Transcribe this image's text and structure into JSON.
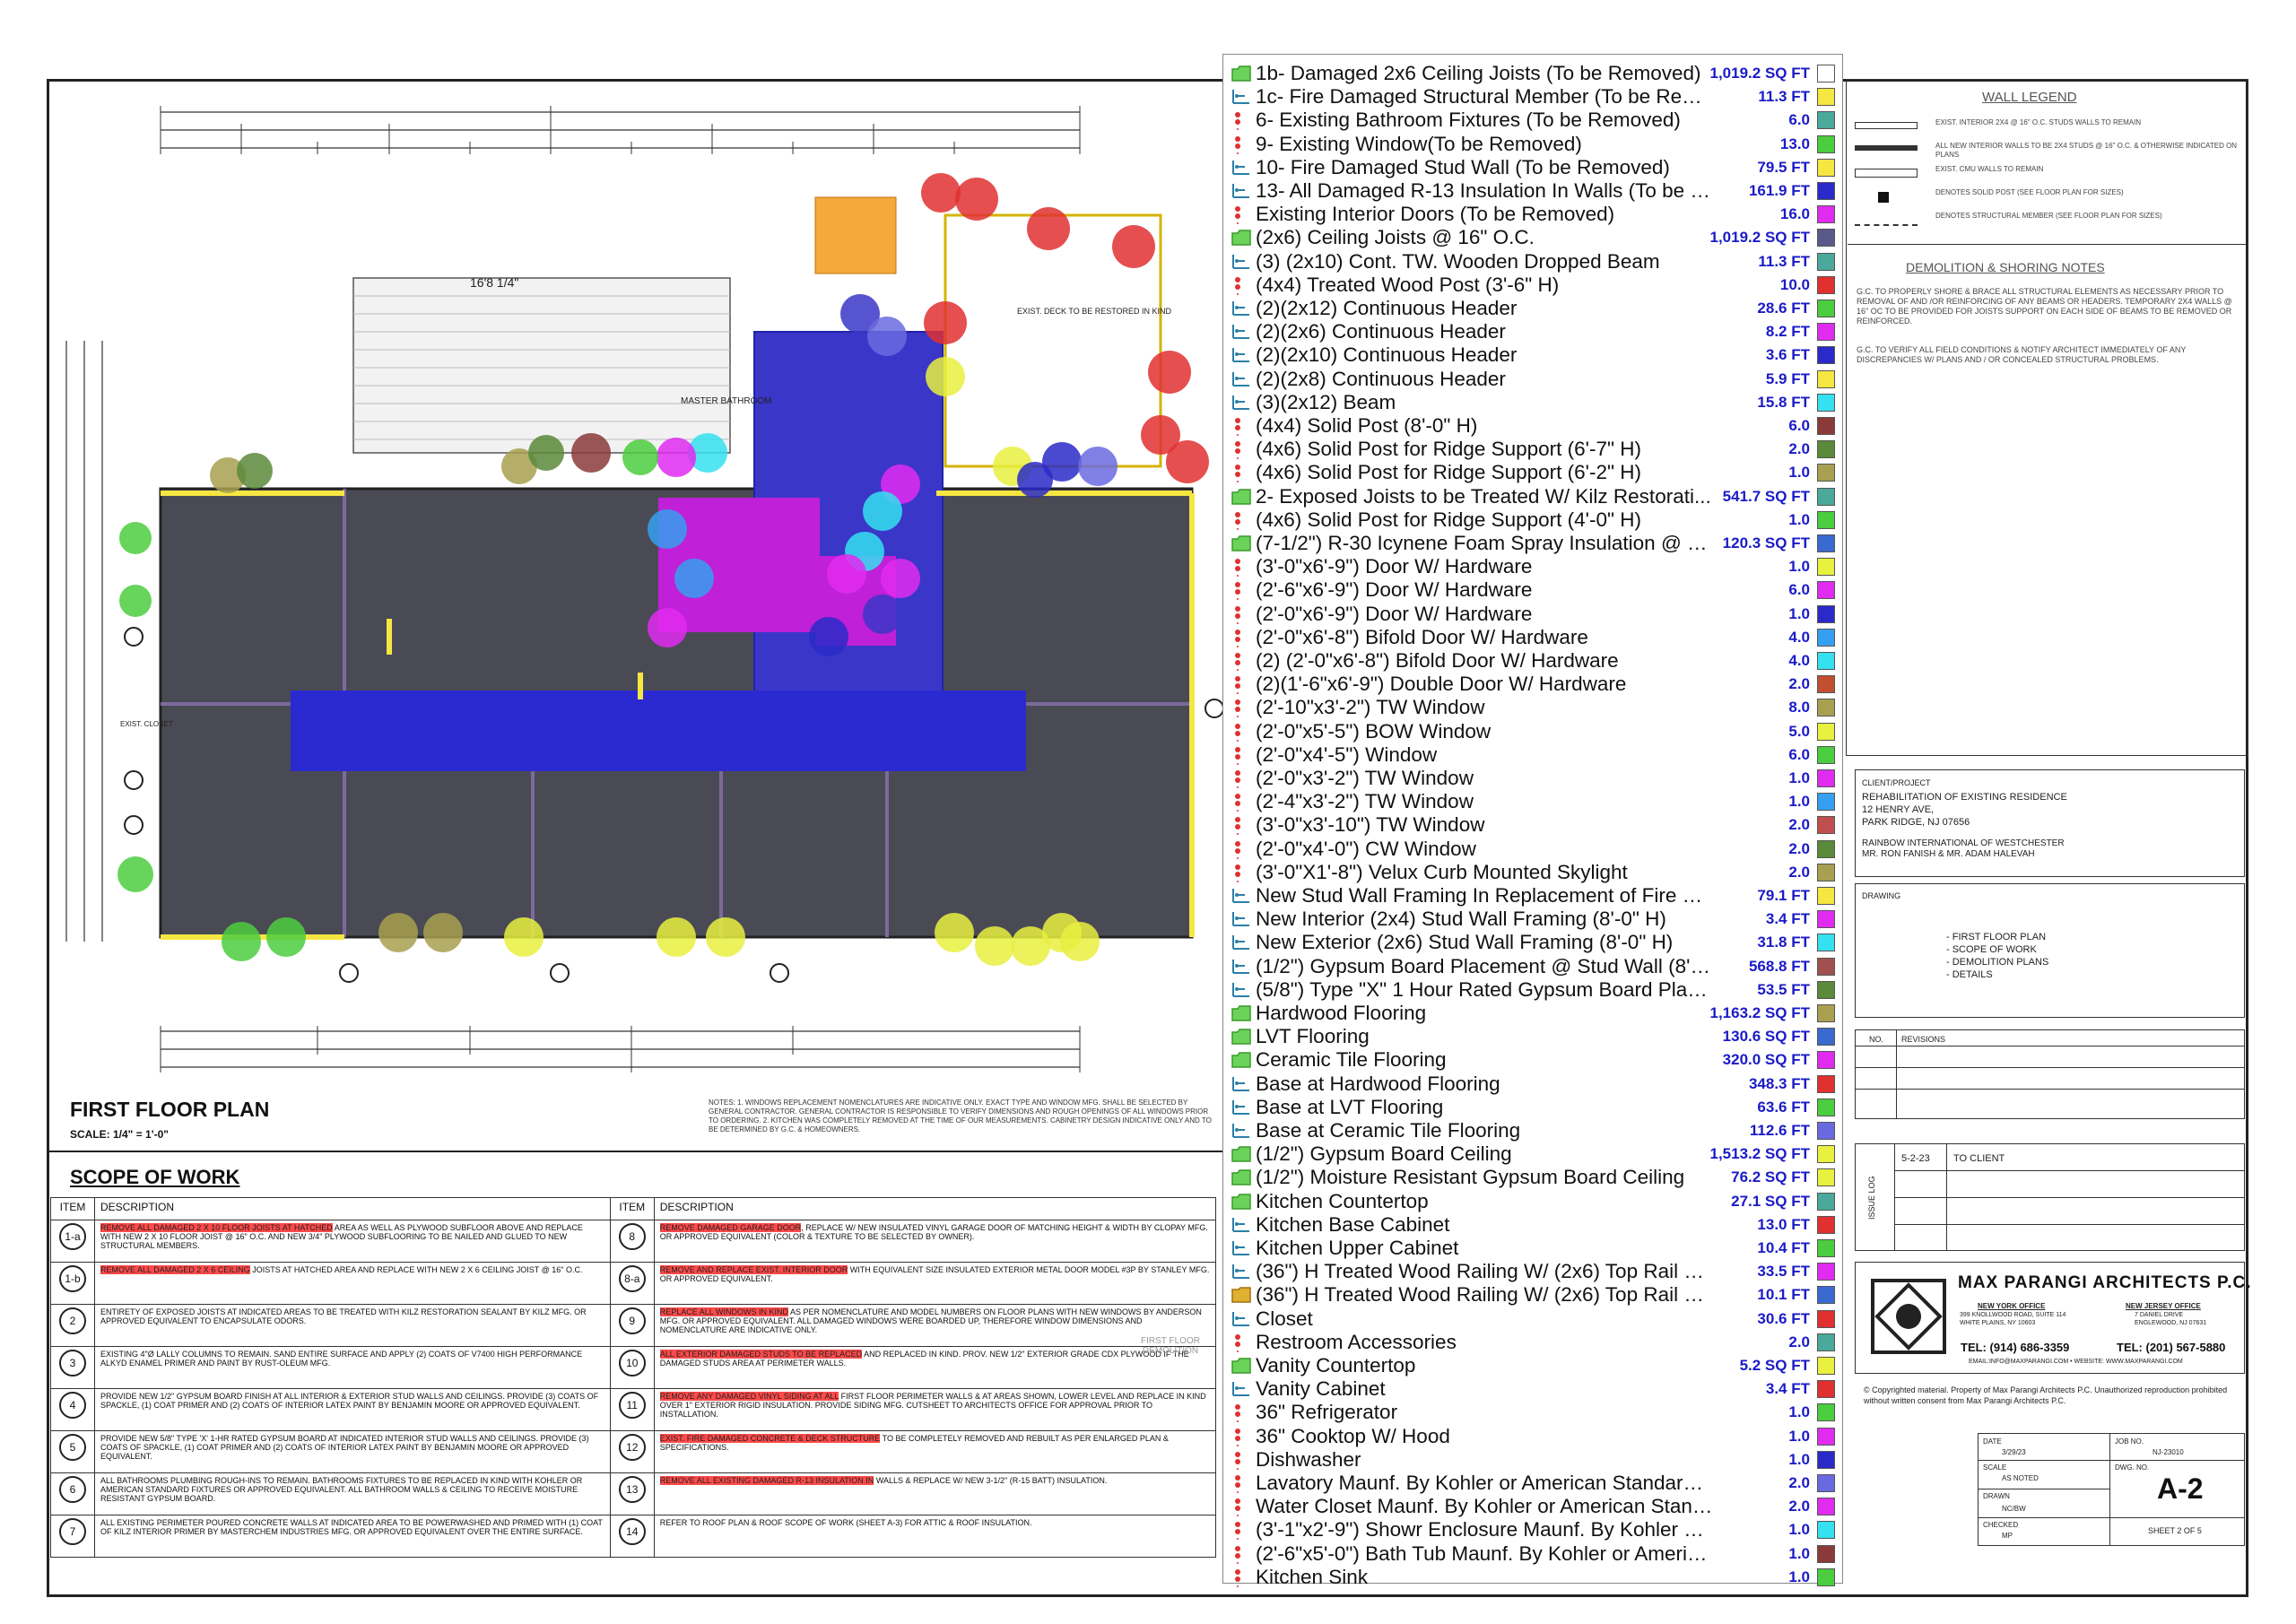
{
  "plan": {
    "dimension_label": "16'8 1/4\"",
    "title": "FIRST FLOOR PLAN",
    "scale": "SCALE: 1/4\" = 1'-0\"",
    "notes": "NOTES: 1. WINDOWS REPLACEMENT NOMENCLATURES ARE INDICATIVE ONLY. EXACT TYPE AND WINDOW MFG. SHALL BE SELECTED BY GENERAL CONTRACTOR. GENERAL CONTRACTOR IS RESPONSIBLE TO VERIFY DIMENSIONS AND ROUGH OPENINGS OF ALL WINDOWS PRIOR TO ORDERING. 2. KITCHEN WAS COMPLETELY REMOVED AT THE TIME OF OUR MEASUREMENTS. CABINETRY DESIGN INDICATIVE ONLY AND TO BE DETERMINED BY G.C. & HOMEOWNERS.",
    "room_labels": [
      "MASTER BATHROOM",
      "EXIST. DECK TO BE RESTORED IN KIND",
      "EXIST. CLOSET"
    ]
  },
  "scope": {
    "title": "SCOPE OF WORK",
    "col_item": "ITEM",
    "col_desc": "DESCRIPTION",
    "left": [
      {
        "item": "1-a",
        "hl": "REMOVE ALL DAMAGED 2 X 10 FLOOR JOISTS AT HATCHED",
        "rest": " AREA AS WELL AS PLYWOOD SUBFLOOR ABOVE AND REPLACE WITH NEW 2 X 10 FLOOR JOIST @ 16\" O.C. AND NEW 3/4\" PLYWOOD SUBFLOORING TO BE NAILED AND GLUED TO NEW STRUCTURAL MEMBERS."
      },
      {
        "item": "1-b",
        "hl": "REMOVE ALL DAMAGED 2 X 6 CEILING",
        "rest": " JOISTS AT HATCHED AREA AND REPLACE WITH NEW 2 X 6 CEILING JOIST @ 16\" O.C."
      },
      {
        "item": "2",
        "hl": "",
        "rest": "ENTIRETY OF EXPOSED JOISTS AT INDICATED AREAS TO BE TREATED WITH KILZ RESTORATION SEALANT BY KILZ MFG. OR APPROVED EQUIVALENT TO ENCAPSULATE ODORS."
      },
      {
        "item": "3",
        "hl": "",
        "rest": "EXISTING 4\"Ø LALLY COLUMNS TO REMAIN. SAND ENTIRE SURFACE AND APPLY (2) COATS OF V7400 HIGH PERFORMANCE ALKYD ENAMEL PRIMER AND PAINT BY RUST-OLEUM MFG."
      },
      {
        "item": "4",
        "hl": "",
        "rest": "PROVIDE NEW 1/2\" GYPSUM BOARD FINISH AT ALL INTERIOR & EXTERIOR STUD WALLS AND CEILINGS. PROVIDE (3) COATS OF SPACKLE, (1) COAT PRIMER AND (2) COATS OF INTERIOR LATEX PAINT BY BENJAMIN MOORE OR APPROVED EQUIVALENT."
      },
      {
        "item": "5",
        "hl": "",
        "rest": "PROVIDE NEW 5/8\" TYPE 'X' 1-HR RATED GYPSUM BOARD AT INDICATED INTERIOR STUD WALLS AND CEILINGS. PROVIDE (3) COATS OF SPACKLE, (1) COAT PRIMER AND (2) COATS OF INTERIOR LATEX PAINT BY BENJAMIN MOORE OR APPROVED EQUIVALENT."
      },
      {
        "item": "6",
        "hl": "",
        "rest": "ALL BATHROOMS PLUMBING ROUGH-INS TO REMAIN. BATHROOMS FIXTURES TO BE REPLACED IN KIND WITH KOHLER OR AMERICAN STANDARD FIXTURES OR APPROVED EQUIVALENT. ALL BATHROOM WALLS & CEILING TO RECEIVE MOISTURE RESISTANT GYPSUM BOARD."
      },
      {
        "item": "7",
        "hl": "",
        "rest": "ALL EXISTING PERIMETER POURED CONCRETE WALLS AT INDICATED AREA TO BE POWERWASHED AND PRIMED WITH (1) COAT OF KILZ INTERIOR PRIMER BY MASTERCHEM INDUSTRIES MFG. OR APPROVED EQUIVALENT OVER THE ENTIRE SURFACE."
      }
    ],
    "right": [
      {
        "item": "8",
        "hl": "REMOVE DAMAGED GARAGE DOOR",
        "rest": ", REPLACE W/ NEW INSULATED VINYL GARAGE DOOR OF MATCHING HEIGHT & WIDTH BY CLOPAY MFG. OR APPROVED EQUIVALENT (COLOR & TEXTURE TO BE SELECTED BY OWNER)."
      },
      {
        "item": "8-a",
        "hl": "REMOVE AND REPLACE EXIST. INTERIOR DOOR",
        "rest": " WITH EQUIVALENT SIZE INSULATED EXTERIOR METAL DOOR MODEL #3P BY STANLEY MFG. OR APPROVED EQUIVALENT."
      },
      {
        "item": "9",
        "hl": "REPLACE ALL WINDOWS IN KIND",
        "rest": " AS PER NOMENCLATURE AND MODEL NUMBERS ON FLOOR PLANS WITH NEW WINDOWS BY ANDERSON MFG. OR APPROVED EQUIVALENT. ALL DAMAGED WINDOWS WERE BOARDED UP, THEREFORE WINDOW DIMENSIONS AND NOMENCLATURE ARE INDICATIVE ONLY."
      },
      {
        "item": "10",
        "hl": "ALL EXTERIOR DAMAGED STUDS TO BE REPLACED",
        "rest": " AND REPLACED IN KIND. PROV. NEW 1/2\" EXTERIOR GRADE CDX PLYWOOD IF THE DAMAGED STUDS AREA AT PERIMETER WALLS."
      },
      {
        "item": "11",
        "hl": "REMOVE ANY DAMAGED VINYL SIDING AT ALL",
        "rest": " FIRST FLOOR PERIMETER WALLS & AT AREAS SHOWN, LOWER LEVEL AND REPLACE IN KIND OVER 1\" EXTERIOR RIGID INSULATION. PROVIDE SIDING MFG. CUTSHEET TO ARCHITECTS OFFICE FOR APPROVAL PRIOR TO INSTALLATION."
      },
      {
        "item": "12",
        "hl": "EXIST. FIRE DAMAGED CONCRETE & DECK STRUCTURE",
        "rest": " TO BE COMPLETELY REMOVED AND REBUILT AS PER ENLARGED PLAN & SPECIFICATIONS."
      },
      {
        "item": "13",
        "hl": "REMOVE ALL EXISTING DAMAGED R-13 INSULATION IN",
        "rest": " WALLS & REPLACE W/ NEW 3-1/2\" (R-15 BATT) INSULATION."
      },
      {
        "item": "14",
        "hl": "",
        "rest": "REFER TO ROOF PLAN & ROOF SCOPE OF WORK (SHEET A-3) FOR ATTIC & ROOF INSULATION."
      }
    ]
  },
  "legend": [
    {
      "icon": "area",
      "label": "1b- Damaged 2x6 Ceiling Joists (To be Removed)",
      "qty": "1,019.2 SQ FT",
      "color": "#ffffff"
    },
    {
      "icon": "line",
      "label": "1c- Fire Damaged Structural Member (To be Removed)",
      "qty": "11.3 FT",
      "color": "#f5e642"
    },
    {
      "icon": "count",
      "label": "6- Existing Bathroom Fixtures (To be Removed)",
      "qty": "6.0",
      "color": "#4aa99a"
    },
    {
      "icon": "count",
      "label": "9- Existing Window(To be Removed)",
      "qty": "13.0",
      "color": "#4ccc3f"
    },
    {
      "icon": "line",
      "label": "10- Fire Damaged Stud Wall (To be Removed)",
      "qty": "79.5 FT",
      "color": "#f5e642"
    },
    {
      "icon": "line",
      "label": "13- All Damaged R-13 Insulation In Walls (To be Re...",
      "qty": "161.9 FT",
      "color": "#2a2ac8"
    },
    {
      "icon": "count",
      "label": "Existing Interior Doors (To be Removed)",
      "qty": "16.0",
      "color": "#e02cf0"
    },
    {
      "icon": "area",
      "label": "(2x6) Ceiling Joists @ 16\" O.C.",
      "qty": "1,019.2 SQ FT",
      "color": "#5a5a8a"
    },
    {
      "icon": "line",
      "label": "(3) (2x10) Cont. TW. Wooden Dropped Beam",
      "qty": "11.3 FT",
      "color": "#4aa99a"
    },
    {
      "icon": "count",
      "label": "(4x4) Treated Wood Post (3'-6\" H)",
      "qty": "10.0",
      "color": "#e03030"
    },
    {
      "icon": "line",
      "label": "(2)(2x12) Continuous Header",
      "qty": "28.6 FT",
      "color": "#4ccc3f"
    },
    {
      "icon": "line",
      "label": "(2)(2x6) Continuous Header",
      "qty": "8.2 FT",
      "color": "#e02cf0"
    },
    {
      "icon": "line",
      "label": "(2)(2x10) Continuous Header",
      "qty": "3.6 FT",
      "color": "#2a2ac8"
    },
    {
      "icon": "line",
      "label": "(2)(2x8) Continuous Header",
      "qty": "5.9 FT",
      "color": "#f5e642"
    },
    {
      "icon": "line",
      "label": "(3)(2x12) Beam",
      "qty": "15.8 FT",
      "color": "#35e0f0"
    },
    {
      "icon": "count",
      "label": "(4x4) Solid Post (8'-0\" H)",
      "qty": "6.0",
      "color": "#8b3a3a"
    },
    {
      "icon": "count",
      "label": "(4x6) Solid Post for Ridge Support (6'-7\" H)",
      "qty": "2.0",
      "color": "#5a8a3a"
    },
    {
      "icon": "count",
      "label": "(4x6) Solid Post for Ridge Support (6'-2\" H)",
      "qty": "1.0",
      "color": "#a8a050"
    },
    {
      "icon": "area",
      "label": "2- Exposed Joists to be Treated W/ Kilz Restorati...",
      "qty": "541.7 SQ FT",
      "color": "#4aa99a"
    },
    {
      "icon": "count",
      "label": "(4x6) Solid Post for Ridge Support (4'-0\" H)",
      "qty": "1.0",
      "color": "#4ccc3f"
    },
    {
      "icon": "area",
      "label": "(7-1/2\") R-30 Icynene Foam Spray Insulation @ Fl...",
      "qty": "120.3 SQ FT",
      "color": "#3a6ad0"
    },
    {
      "icon": "count",
      "label": "(3'-0\"x6'-9\") Door W/ Hardware",
      "qty": "1.0",
      "color": "#e8f040"
    },
    {
      "icon": "count",
      "label": "(2'-6\"x6'-9\") Door W/ Hardware",
      "qty": "6.0",
      "color": "#e02cf0"
    },
    {
      "icon": "count",
      "label": "(2'-0\"x6'-9\") Door W/ Hardware",
      "qty": "1.0",
      "color": "#2a2ac8"
    },
    {
      "icon": "count",
      "label": "(2'-0\"x6'-8\") Bifold Door W/ Hardware",
      "qty": "4.0",
      "color": "#35a0f0"
    },
    {
      "icon": "count",
      "label": "(2) (2'-0\"x6'-8\") Bifold Door W/ Hardware",
      "qty": "4.0",
      "color": "#35e0f0"
    },
    {
      "icon": "count",
      "label": "(2)(1'-6\"x6'-9\") Double Door W/ Hardware",
      "qty": "2.0",
      "color": "#c05030"
    },
    {
      "icon": "count",
      "label": "(2'-10\"x3'-2\") TW Window",
      "qty": "8.0",
      "color": "#a8a050"
    },
    {
      "icon": "count",
      "label": "(2'-0\"x5'-5\") BOW Window",
      "qty": "5.0",
      "color": "#e8f040"
    },
    {
      "icon": "count",
      "label": "(2'-0\"x4'-5\") Window",
      "qty": "6.0",
      "color": "#4ccc3f"
    },
    {
      "icon": "count",
      "label": "(2'-0\"x3'-2\") TW Window",
      "qty": "1.0",
      "color": "#e02cf0"
    },
    {
      "icon": "count",
      "label": "(2'-4\"x3'-2\") TW Window",
      "qty": "1.0",
      "color": "#35a0f0"
    },
    {
      "icon": "count",
      "label": "(3'-0\"x3'-10\") TW Window",
      "qty": "2.0",
      "color": "#c05050"
    },
    {
      "icon": "count",
      "label": "(2'-0\"x4'-0\") CW Window",
      "qty": "2.0",
      "color": "#5a8a3a"
    },
    {
      "icon": "count",
      "label": "(3'-0\"X1'-8\") Velux Curb Mounted Skylight",
      "qty": "2.0",
      "color": "#a8a050"
    },
    {
      "icon": "line",
      "label": "New Stud Wall Framing In Replacement of Fire Dama...",
      "qty": "79.1 FT",
      "color": "#f5e642"
    },
    {
      "icon": "line",
      "label": "New Interior (2x4) Stud Wall Framing (8'-0\" H)",
      "qty": "3.4 FT",
      "color": "#e02cf0"
    },
    {
      "icon": "line",
      "label": "New Exterior (2x6) Stud Wall Framing (8'-0\" H)",
      "qty": "31.8 FT",
      "color": "#35e0f0"
    },
    {
      "icon": "line",
      "label": "(1/2\") Gypsum Board Placement @ Stud Wall (8'-0\" ...",
      "qty": "568.8 FT",
      "color": "#a05050"
    },
    {
      "icon": "line",
      "label": "(5/8\") Type \"X\" 1 Hour Rated Gypsum Board Placeme...",
      "qty": "53.5 FT",
      "color": "#5a8a3a"
    },
    {
      "icon": "area",
      "label": "Hardwood Flooring",
      "qty": "1,163.2 SQ FT",
      "color": "#a8a050"
    },
    {
      "icon": "area",
      "label": "LVT Flooring",
      "qty": "130.6 SQ FT",
      "color": "#3a6ad0"
    },
    {
      "icon": "area",
      "label": "Ceramic Tile Flooring",
      "qty": "320.0 SQ FT",
      "color": "#e02cf0"
    },
    {
      "icon": "line",
      "label": "Base at Hardwood Flooring",
      "qty": "348.3 FT",
      "color": "#e03030"
    },
    {
      "icon": "line",
      "label": "Base at LVT Flooring",
      "qty": "63.6 FT",
      "color": "#4ccc3f"
    },
    {
      "icon": "line",
      "label": "Base at Ceramic Tile Flooring",
      "qty": "112.6 FT",
      "color": "#6a6ae0"
    },
    {
      "icon": "area",
      "label": "(1/2\") Gypsum Board Ceiling",
      "qty": "1,513.2 SQ FT",
      "color": "#e8f040"
    },
    {
      "icon": "area",
      "label": "(1/2\") Moisture Resistant Gypsum Board Ceiling",
      "qty": "76.2 SQ FT",
      "color": "#e8f040"
    },
    {
      "icon": "area",
      "label": "Kitchen Countertop",
      "qty": "27.1 SQ FT",
      "color": "#4aa99a"
    },
    {
      "icon": "line",
      "label": "Kitchen Base Cabinet",
      "qty": "13.0 FT",
      "color": "#e03030"
    },
    {
      "icon": "line",
      "label": "Kitchen Upper Cabinet",
      "qty": "10.4 FT",
      "color": "#4ccc3f"
    },
    {
      "icon": "line",
      "label": "(36\") H Treated Wood Railing W/ (2x6) Top Rail & Bal...",
      "qty": "33.5 FT",
      "color": "#e02cf0"
    },
    {
      "icon": "folder",
      "label": "(36\") H Treated Wood Railing W/ (2x6) Top Rail & Bal...",
      "qty": "10.1 FT",
      "color": "#3a6ad0"
    },
    {
      "icon": "line",
      "label": "Closet",
      "qty": "30.6 FT",
      "color": "#e03030"
    },
    {
      "icon": "count",
      "label": "Restroom Accessories",
      "qty": "2.0",
      "color": "#4aa99a"
    },
    {
      "icon": "area",
      "label": "Vanity Countertop",
      "qty": "5.2 SQ FT",
      "color": "#e8f040"
    },
    {
      "icon": "line",
      "label": "Vanity Cabinet",
      "qty": "3.4 FT",
      "color": "#e03030"
    },
    {
      "icon": "count",
      "label": "36\" Refrigerator",
      "qty": "1.0",
      "color": "#4ccc3f"
    },
    {
      "icon": "count",
      "label": "36\" Cooktop W/ Hood",
      "qty": "1.0",
      "color": "#e02cf0"
    },
    {
      "icon": "count",
      "label": "Dishwasher",
      "qty": "1.0",
      "color": "#2a2ac8"
    },
    {
      "icon": "count",
      "label": "Lavatory Maunf. By Kohler or American Standard Fixture...",
      "qty": "2.0",
      "color": "#6a6ae0"
    },
    {
      "icon": "count",
      "label": "Water Closet Maunf. By Kohler or American Standard Fi...",
      "qty": "2.0",
      "color": "#e02cf0"
    },
    {
      "icon": "count",
      "label": "(3'-1\"x2'-9\") Showr Enclosure Maunf. By Kohler or Ameri...",
      "qty": "1.0",
      "color": "#35e0f0"
    },
    {
      "icon": "count",
      "label": "(2'-6\"x5'-0\") Bath Tub Maunf. By Kohler or American Sta...",
      "qty": "1.0",
      "color": "#8b3a3a"
    },
    {
      "icon": "count",
      "label": "Kitchen Sink",
      "qty": "1.0",
      "color": "#4ccc3f"
    }
  ],
  "wall_legend": {
    "title": "WALL LEGEND",
    "items": [
      "EXIST. INTERIOR 2X4 @ 16\" O.C. STUDS WALLS TO REMAIN",
      "ALL NEW INTERIOR WALLS TO BE 2X4 STUDS @ 16\" O.C. & OTHERWISE INDICATED ON PLANS",
      "EXIST. CMU WALLS TO REMAIN",
      "DENOTES SOLID POST (SEE FLOOR PLAN FOR SIZES)",
      "DENOTES STRUCTURAL MEMBER (SEE FLOOR PLAN FOR SIZES)"
    ]
  },
  "demolition": {
    "title": "DEMOLITION & SHORING NOTES",
    "p1": "G.C. TO PROPERLY SHORE & BRACE ALL STRUCTURAL ELEMENTS AS NECESSARY PRIOR TO REMOVAL OF AND /OR REINFORCING OF ANY BEAMS OR HEADERS. TEMPORARY 2X4 WALLS @ 16\" OC TO BE PROVIDED FOR JOISTS SUPPORT ON EACH SIDE OF BEAMS TO BE REMOVED OR REINFORCED.",
    "p2": "G.C. TO VERIFY ALL FIELD CONDITIONS & NOTIFY ARCHITECT IMMEDIATELY OF ANY DISCREPANCIES W/ PLANS AND / OR CONCEALED STRUCTURAL PROBLEMS."
  },
  "client": {
    "label": "CLIENT/PROJECT",
    "line1": "REHABILITATION OF EXISTING RESIDENCE",
    "line2": "12 HENRY AVE,",
    "line3": "PARK RIDGE, NJ 07656",
    "line4": "RAINBOW INTERNATIONAL OF WESTCHESTER",
    "line5": "MR. RON FANISH & MR. ADAM HALEVAH"
  },
  "drawing": {
    "label": "DRAWING",
    "items": [
      "- FIRST FLOOR PLAN",
      "- SCOPE OF WORK",
      "- DEMOLITION PLANS",
      "- DETAILS"
    ]
  },
  "revisions": {
    "no": "NO.",
    "rev": "REVISIONS"
  },
  "issue": {
    "label": "ISSUE LOG",
    "date": "5-2-23",
    "desc": "TO CLIENT"
  },
  "firm": {
    "name": "MAX PARANGI ARCHITECTS P.C.",
    "ny_label": "NEW YORK OFFICE",
    "ny_addr": "399 KNOLLWOOD ROAD, SUITE 114 WHITE PLAINS, NY 10603",
    "nj_label": "NEW JERSEY OFFICE",
    "nj_addr": "7 DANIEL DRIVE ENGLEWOOD, NJ 07631",
    "tel_ny": "TEL: (914) 686-3359",
    "tel_nj": "TEL: (201) 567-5880",
    "web": "EMAIL:INFO@MAXPARANGI.COM • WEBSITE: WWW.MAXPARANGI.COM",
    "copyright": "© Copyrighted material. Property of Max Parangi Architects P.C. Unauthorized reproduction prohibited without written consent from Max Parangi Architects P.C."
  },
  "meta": {
    "date_label": "DATE",
    "date": "3/29/23",
    "job_label": "JOB NO.",
    "job": "NJ-23010",
    "scale_label": "SCALE",
    "scale": "AS NOTED",
    "dwg_label": "DWG. NO.",
    "dwg": "A-2",
    "drawn_label": "DRAWN",
    "drawn": "NC/BW",
    "checked_label": "CHECKED",
    "checked": "MP",
    "sheet": "SHEET 2 OF 5"
  },
  "under_legend_text": "FIRST FLOOR DEMOLITION"
}
